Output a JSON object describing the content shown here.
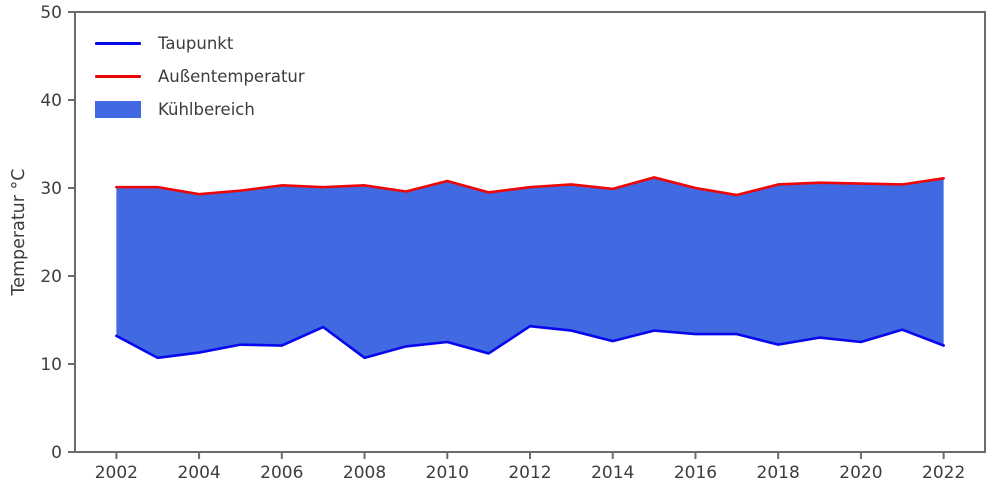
{
  "chart_data": {
    "type": "area",
    "title": "",
    "xlabel": "",
    "ylabel": "Temperatur °C",
    "xlim": [
      2001,
      2023
    ],
    "ylim": [
      0,
      50
    ],
    "xticks": [
      2002,
      2004,
      2006,
      2008,
      2010,
      2012,
      2014,
      2016,
      2018,
      2020,
      2022
    ],
    "yticks": [
      0,
      10,
      20,
      30,
      40,
      50
    ],
    "grid": false,
    "legend_position": "upper left",
    "x": [
      2002,
      2003,
      2004,
      2005,
      2006,
      2007,
      2008,
      2009,
      2010,
      2011,
      2012,
      2013,
      2014,
      2015,
      2016,
      2017,
      2018,
      2019,
      2020,
      2021,
      2022
    ],
    "series": [
      {
        "name": "Taupunkt",
        "color": "#0808ee",
        "values": [
          13.2,
          10.7,
          11.3,
          12.2,
          12.1,
          14.2,
          10.7,
          12.0,
          12.5,
          11.2,
          14.3,
          13.8,
          12.6,
          13.8,
          13.4,
          13.4,
          12.2,
          13.0,
          12.5,
          13.9,
          12.1
        ]
      },
      {
        "name": "Außentemperatur",
        "color": "#ee0606",
        "values": [
          30.1,
          30.1,
          29.3,
          29.7,
          30.3,
          30.1,
          30.3,
          29.6,
          30.8,
          29.5,
          30.1,
          30.4,
          29.9,
          31.2,
          30.0,
          29.2,
          30.4,
          30.6,
          30.5,
          30.4,
          31.1
        ]
      }
    ],
    "fill": {
      "name": "Kühlbereich",
      "color": "#4169e1",
      "between": [
        "Taupunkt",
        "Außentemperatur"
      ]
    }
  },
  "legend": {
    "items": [
      {
        "label": "Taupunkt"
      },
      {
        "label": "Außentemperatur"
      },
      {
        "label": "Kühlbereich"
      }
    ]
  }
}
